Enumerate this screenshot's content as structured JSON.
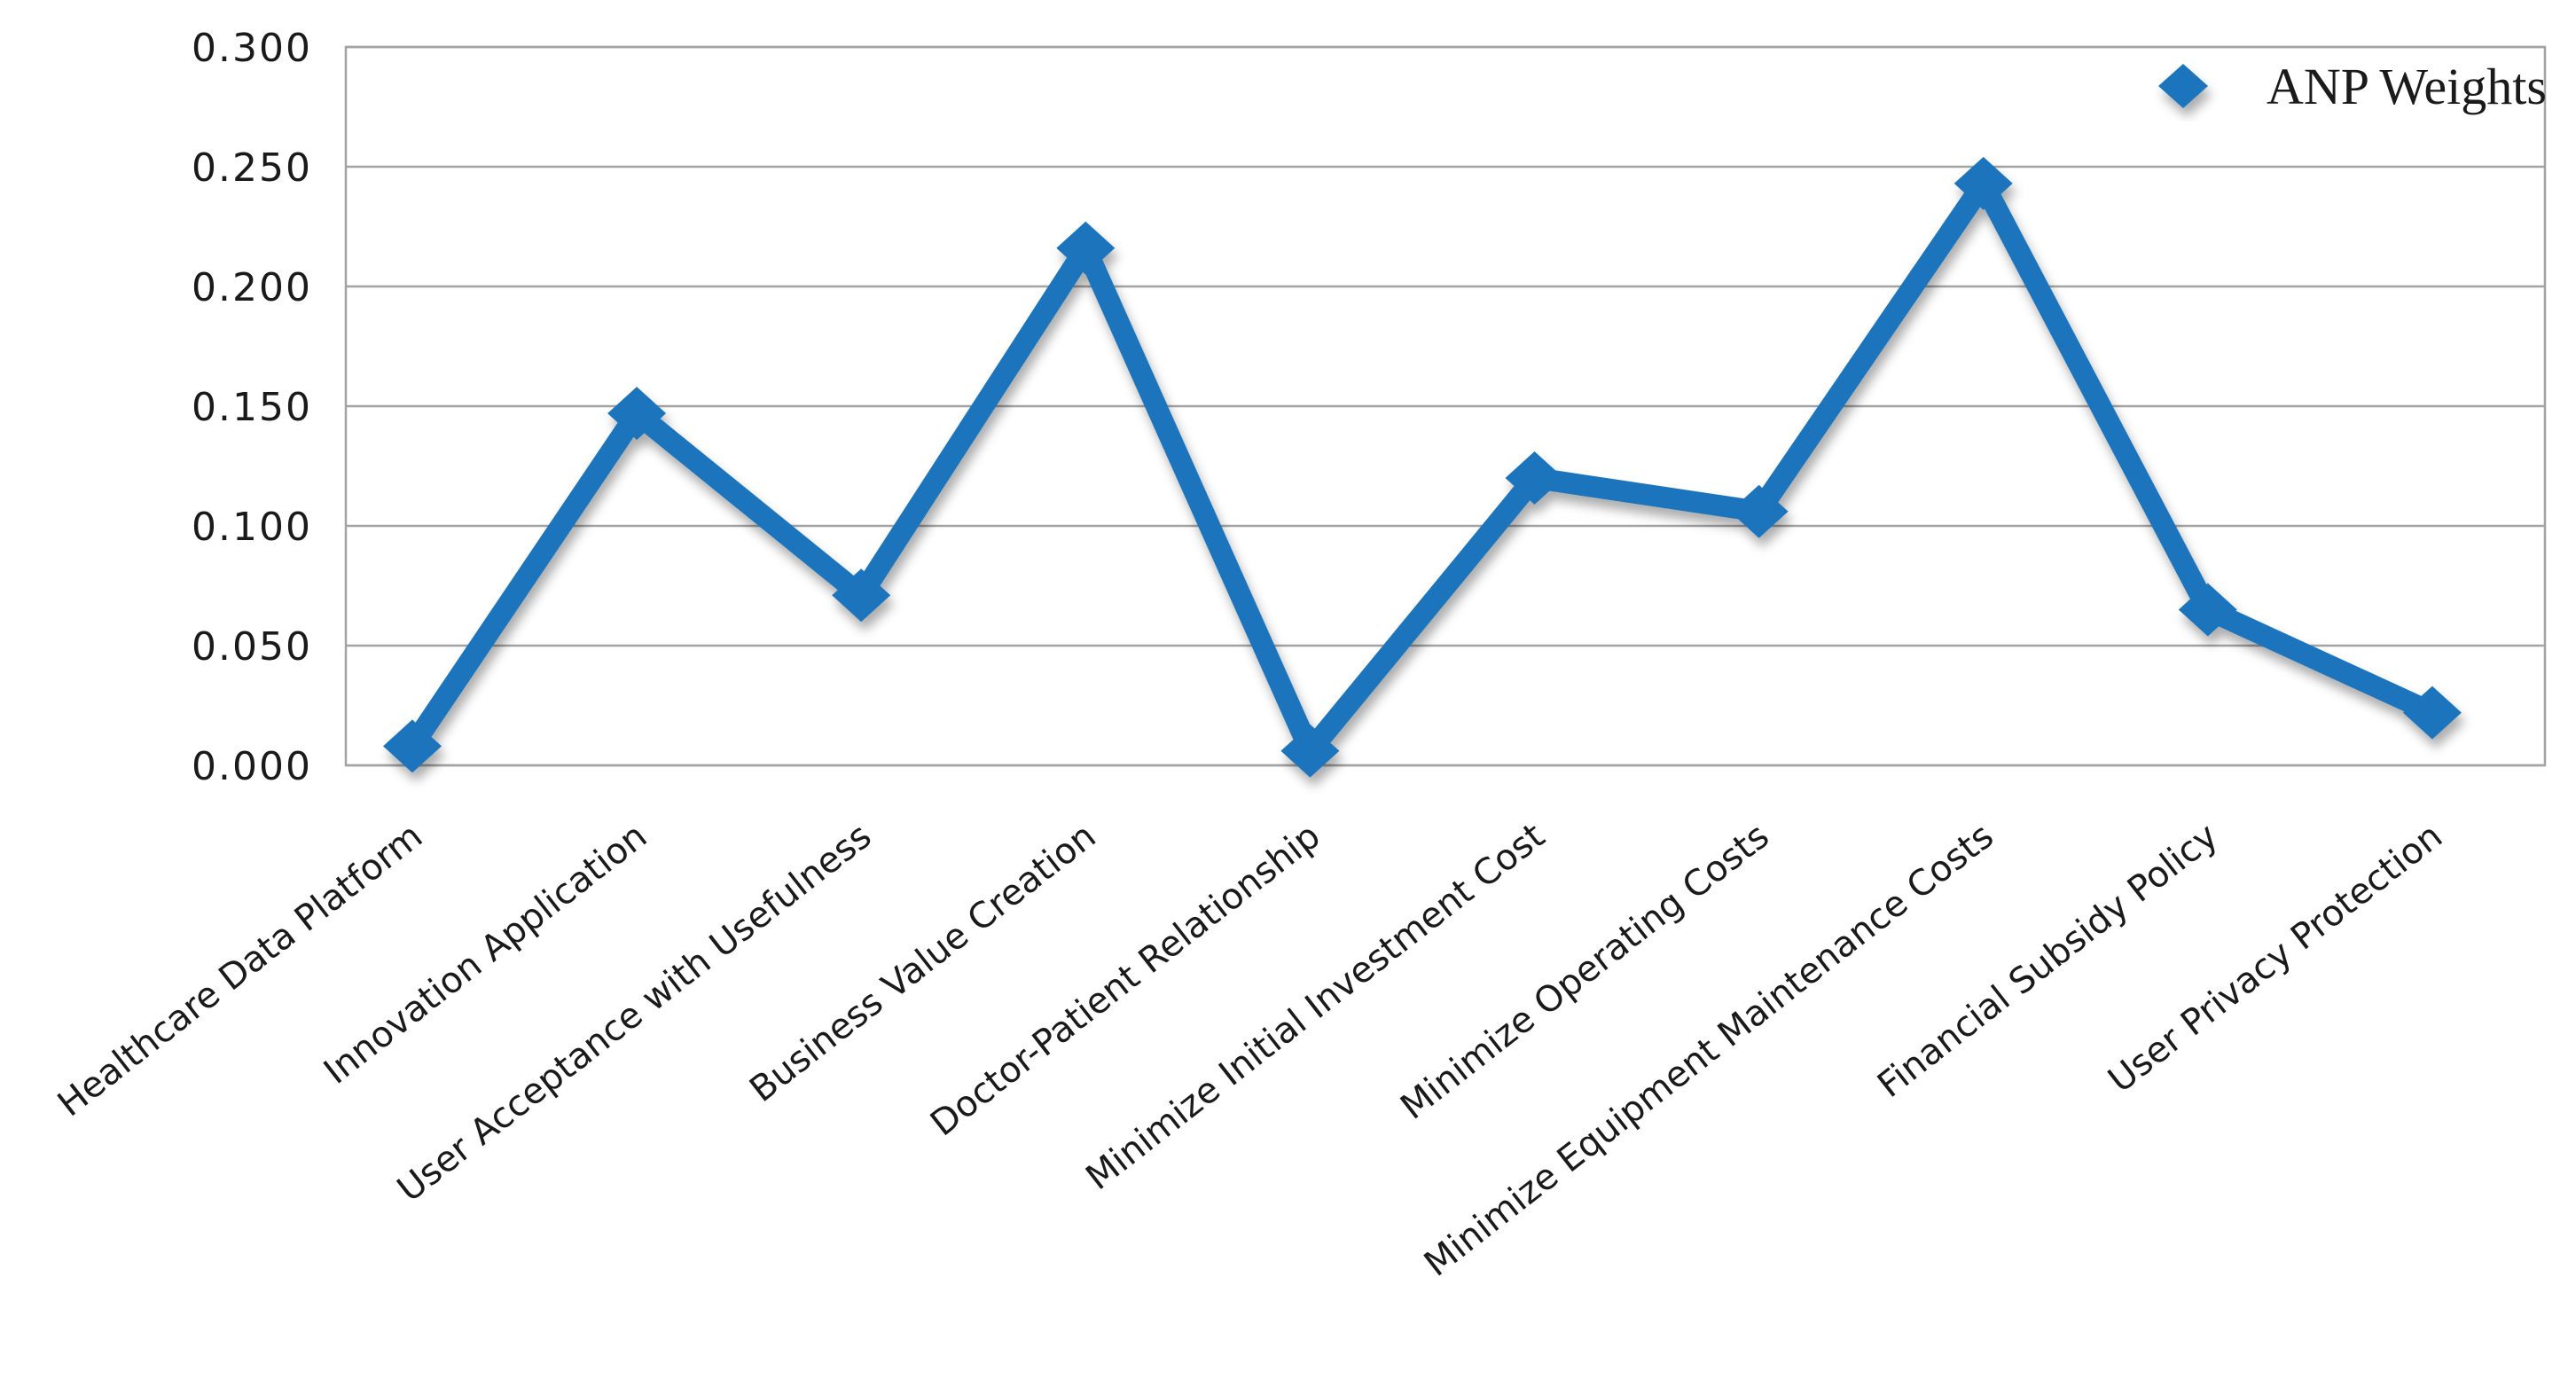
{
  "chart_data": {
    "type": "line",
    "title": "",
    "legend_entries": [
      "ANP Weights"
    ],
    "legend_position": "top-right-inside",
    "categories": [
      "Healthcare Data Platform",
      "Innovation Application",
      "User Acceptance with Usefulness",
      "Business Value Creation",
      "Doctor-Patient Relationship",
      "Minimize Initial Investment Cost",
      "Minimize Operating Costs",
      "Minimize Equipment Maintenance Costs",
      "Financial Subsidy Policy",
      "User Privacy Protection"
    ],
    "series": [
      {
        "name": "ANP Weights",
        "values": [
          0.008,
          0.147,
          0.071,
          0.216,
          0.006,
          0.12,
          0.106,
          0.243,
          0.065,
          0.022
        ]
      }
    ],
    "ylim": [
      0.0,
      0.3
    ],
    "y_tick_step": 0.05,
    "y_tick_labels": [
      "0.300",
      "0.250",
      "0.200",
      "0.150",
      "0.100",
      "0.050",
      "0.000"
    ],
    "grid": "horizontal",
    "marker": "diamond",
    "colors": {
      "series_line": "#1B75BC",
      "gridline": "#A3A3A3",
      "plot_border": "#A3A3A3",
      "axis_text": "#1A1A1A",
      "legend_text": "#1A1A1A",
      "background": "#FFFFFF"
    }
  }
}
